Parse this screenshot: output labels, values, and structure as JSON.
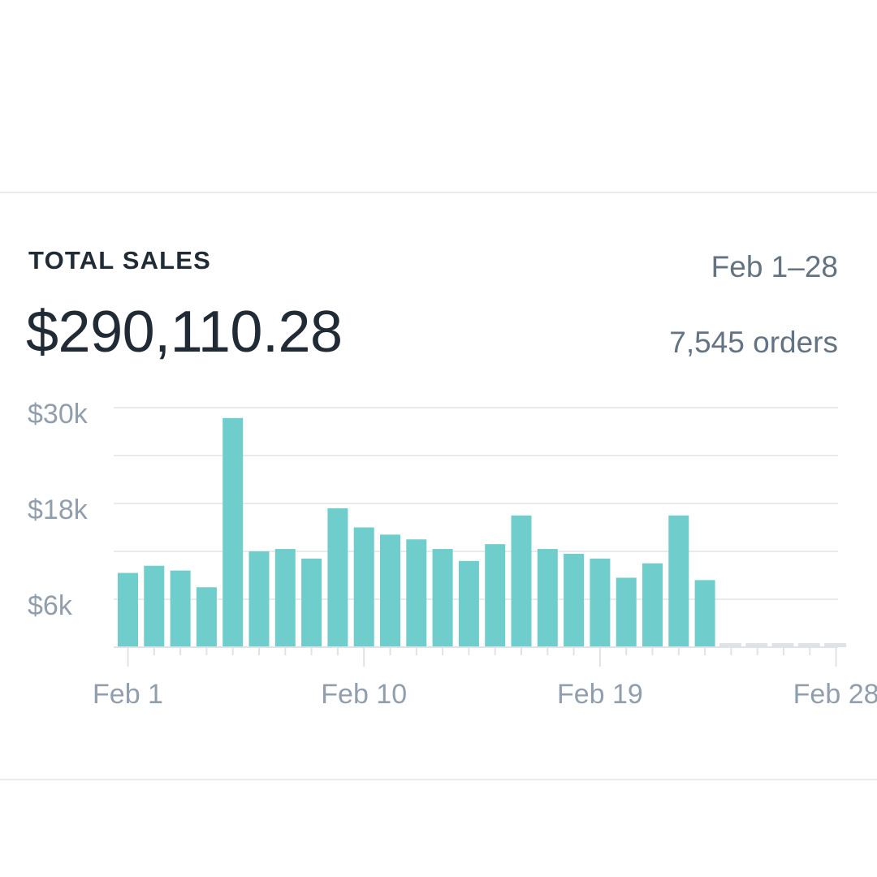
{
  "header": {
    "title": "TOTAL SALES",
    "total": "$290,110.28",
    "date_range": "Feb 1–28",
    "orders": "7,545 orders"
  },
  "colors": {
    "bar": "#6fcecb",
    "future_bar": "#dfe3e8",
    "grid": "#dfe3e8",
    "axis_text": "#919eab",
    "title_text": "#212b36",
    "secondary_text": "#637381"
  },
  "chart_data": {
    "type": "bar",
    "title": "",
    "xlabel": "",
    "ylabel": "",
    "ylim": [
      0,
      30000
    ],
    "grid": true,
    "y_ticks": [
      {
        "value": 30000,
        "label": "$30k"
      },
      {
        "value": 18000,
        "label": "$18k"
      },
      {
        "value": 6000,
        "label": "$6k"
      }
    ],
    "x_tick_labels": [
      {
        "day": 1,
        "label": "Feb 1"
      },
      {
        "day": 10,
        "label": "Feb 10"
      },
      {
        "day": 19,
        "label": "Feb 19"
      },
      {
        "day": 28,
        "label": "Feb 28"
      }
    ],
    "categories": [
      "Feb 1",
      "Feb 2",
      "Feb 3",
      "Feb 4",
      "Feb 5",
      "Feb 6",
      "Feb 7",
      "Feb 8",
      "Feb 9",
      "Feb 10",
      "Feb 11",
      "Feb 12",
      "Feb 13",
      "Feb 14",
      "Feb 15",
      "Feb 16",
      "Feb 17",
      "Feb 18",
      "Feb 19",
      "Feb 20",
      "Feb 21",
      "Feb 22",
      "Feb 23",
      "Feb 24",
      "Feb 25",
      "Feb 26",
      "Feb 27",
      "Feb 28"
    ],
    "values": [
      9300,
      10200,
      9600,
      7500,
      28700,
      12000,
      12300,
      11100,
      17400,
      15000,
      14100,
      13500,
      12300,
      10800,
      12900,
      16500,
      12300,
      11700,
      11100,
      8700,
      10500,
      16500,
      8400,
      0,
      0,
      0,
      0,
      0
    ]
  }
}
